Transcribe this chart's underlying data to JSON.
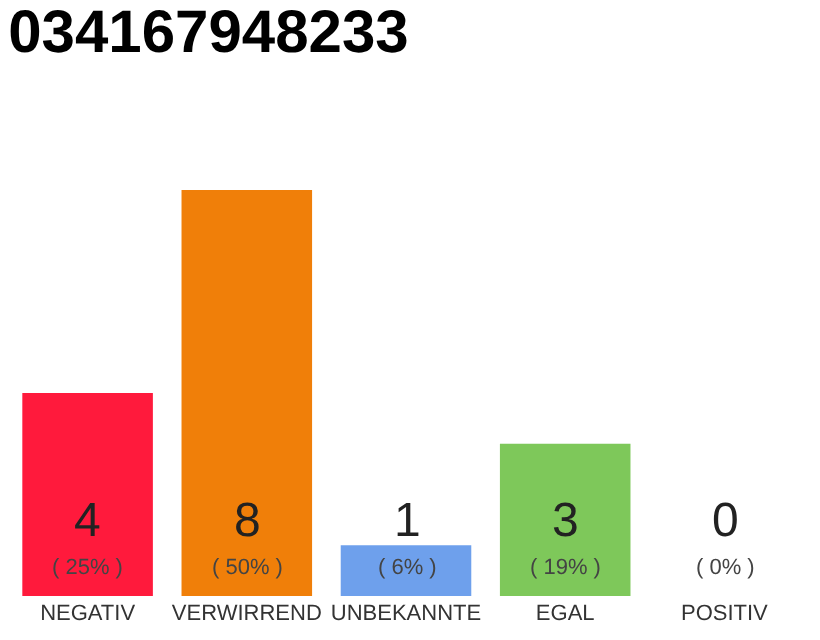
{
  "chart_data": {
    "type": "bar",
    "title": "034167948233",
    "categories": [
      "NEGATIV",
      "VERWIRREND",
      "UNBEKANNTE",
      "EGAL",
      "POSITIV"
    ],
    "values": [
      4,
      8,
      1,
      3,
      0
    ],
    "colors": [
      "#ff1a3c",
      "#f07f09",
      "#6ea0ec",
      "#7ec85a",
      "#cccccc"
    ],
    "value_labels": [
      "4\n( 25% )",
      "8\n( 50% )",
      "1\n( 6% )",
      "3\n( 19% )",
      "0\n( 0% )"
    ],
    "ylim": [
      0,
      8
    ],
    "tick_labels": "x"
  }
}
